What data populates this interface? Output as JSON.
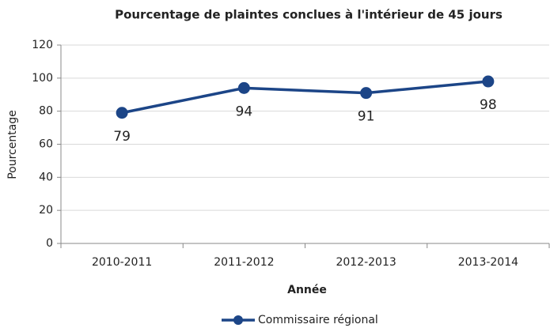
{
  "chart_data": {
    "type": "line",
    "title": "Pourcentage de plaintes conclues à l'intérieur de 45 jours",
    "x_label": "Année",
    "y_label": "Pourcentage",
    "categories": [
      "2010-2011",
      "2011-2012",
      "2012-2013",
      "2013-2014"
    ],
    "series": [
      {
        "name": "Commissaire régional",
        "color": "#1c4587",
        "values": [
          79,
          94,
          91,
          98
        ]
      }
    ],
    "ylim": [
      0,
      120
    ],
    "yticks": [
      0,
      20,
      40,
      60,
      80,
      100,
      120
    ],
    "grid": true,
    "legend": "bottom"
  }
}
